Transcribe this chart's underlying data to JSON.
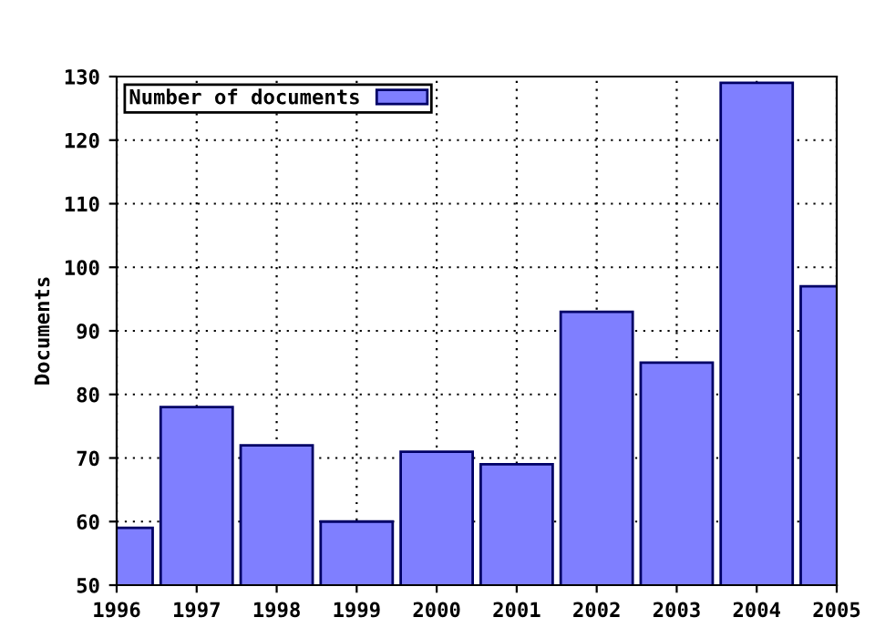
{
  "chart_data": {
    "type": "bar",
    "ylabel": "Documents",
    "x": [
      1996,
      1997,
      1998,
      1999,
      2000,
      2001,
      2002,
      2003,
      2004,
      2005
    ],
    "series": [
      {
        "name": "Number of documents",
        "color": "#7f7fff",
        "values": [
          59,
          78,
          72,
          60,
          71,
          69,
          93,
          85,
          129,
          97
        ]
      }
    ],
    "xlim": [
      1996,
      2005
    ],
    "xticks": [
      1996,
      1997,
      1998,
      1999,
      2000,
      2001,
      2002,
      2003,
      2004,
      2005
    ],
    "ylim": [
      50,
      130
    ],
    "yticks": [
      50,
      60,
      70,
      80,
      90,
      100,
      110,
      120,
      130
    ],
    "grid": true,
    "legend": "top left"
  }
}
